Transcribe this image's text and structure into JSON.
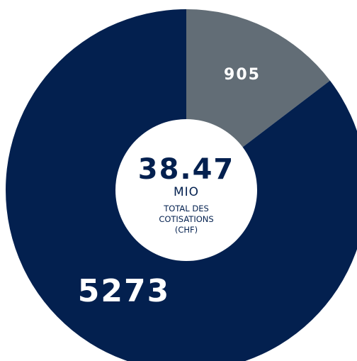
{
  "chart_data": {
    "type": "pie",
    "categories": [
      "905",
      "5273"
    ],
    "values": [
      905,
      5273
    ],
    "data_labels": [
      "905",
      "5273"
    ],
    "colors": [
      "#626d76",
      "#03204f"
    ],
    "center": {
      "value": "38.47",
      "unit": "MIO",
      "caption_lines": [
        "TOTAL DES",
        "COTISATIONS",
        "(CHF)"
      ]
    },
    "title": "",
    "legend": "none"
  }
}
